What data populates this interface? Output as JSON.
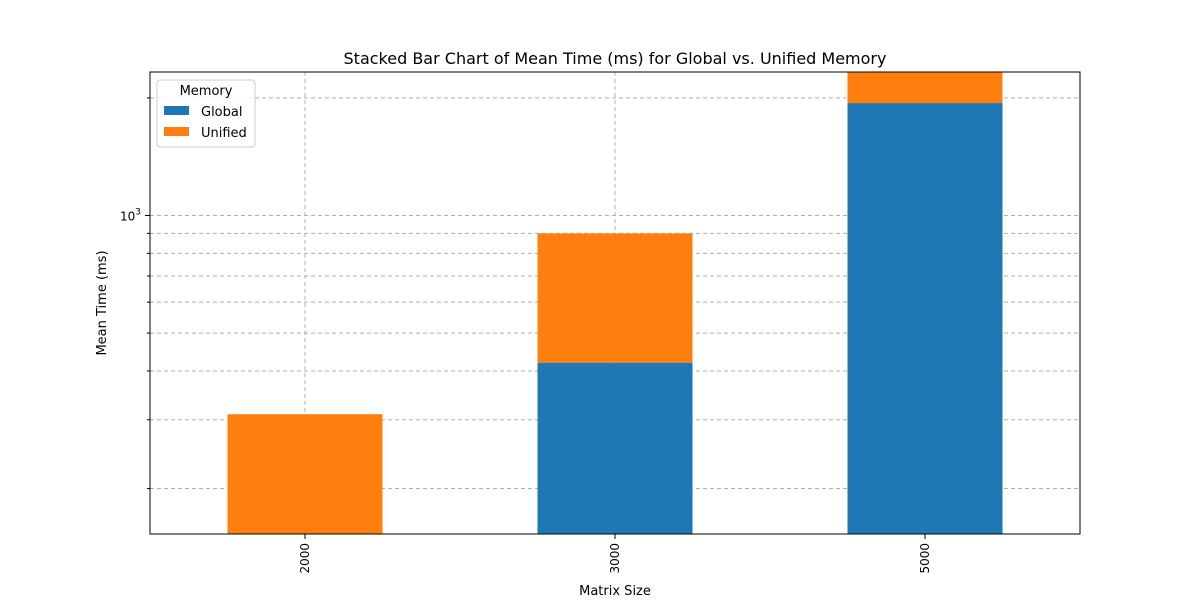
{
  "chart_data": {
    "type": "bar",
    "stacked": true,
    "title": "Stacked Bar Chart of Mean Time (ms) for Global vs. Unified Memory",
    "xlabel": "Matrix Size",
    "ylabel": "Mean Time (ms)",
    "yscale": "log",
    "ylim": [
      153,
      2330
    ],
    "ytick_major_labels": [
      {
        "value": 1000,
        "base": "10",
        "exp": "3"
      }
    ],
    "ytick_minor": [
      200,
      300,
      400,
      500,
      600,
      700,
      800,
      900,
      2000
    ],
    "categories": [
      "2000",
      "3000",
      "5000"
    ],
    "series": [
      {
        "name": "Global",
        "color": "#1f77b4",
        "values": [
          0,
          420,
          1940
        ]
      },
      {
        "name": "Unified",
        "color": "#ff7f0e",
        "values": [
          310,
          480,
          2080
        ]
      }
    ],
    "grid": true,
    "legend": {
      "title": "Memory",
      "position": "upper-left"
    }
  }
}
